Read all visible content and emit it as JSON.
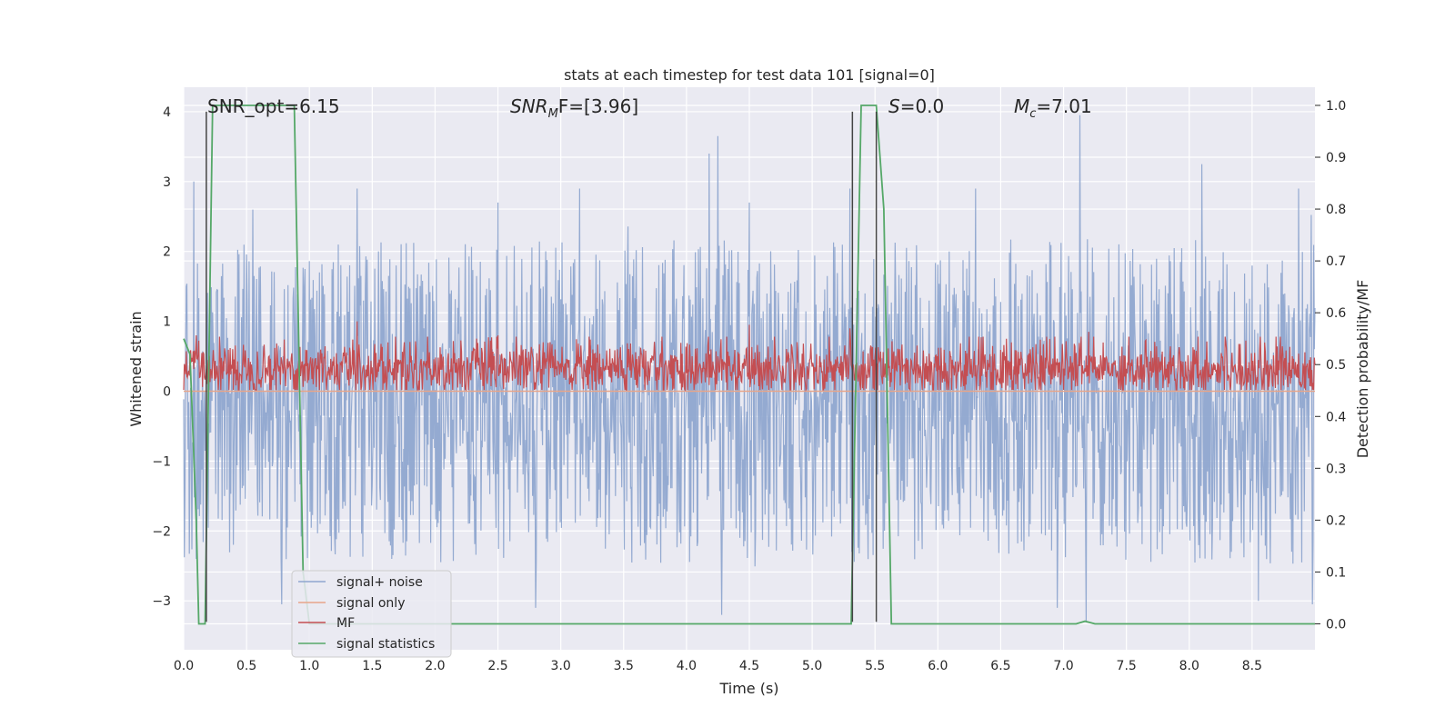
{
  "chart_data": {
    "type": "line",
    "title": "stats at each timestep for test data 101 [signal=0]",
    "xlabel": "Time (s)",
    "ylabel": "Whitened strain",
    "y2label": "Detection probability/MF",
    "xlim": [
      0.0,
      9.0
    ],
    "ylim": [
      -3.7,
      4.35
    ],
    "y2lim": [
      -0.05,
      1.035
    ],
    "grid": true,
    "legend_position": "lower-left",
    "xticks": [
      "0.0",
      "0.5",
      "1.0",
      "1.5",
      "2.0",
      "2.5",
      "3.0",
      "3.5",
      "4.0",
      "4.5",
      "5.0",
      "5.5",
      "6.0",
      "6.5",
      "7.0",
      "7.5",
      "8.0",
      "8.5"
    ],
    "yticks": [
      "4",
      "3",
      "2",
      "1",
      "0",
      "−1",
      "−2",
      "−3"
    ],
    "y2ticks": [
      "1.0",
      "0.9",
      "0.8",
      "0.7",
      "0.6",
      "0.5",
      "0.4",
      "0.3",
      "0.2",
      "0.1",
      "0.0"
    ],
    "annotations": {
      "snr_opt": "SNR_opt=6.15",
      "snr_mf_base": "SNR",
      "snr_mf_sub": "M",
      "snr_mf_rest": "F=[3.96]",
      "s_italic": "S",
      "s_rest": "=0.0",
      "mc_base": "M",
      "mc_sub": "c",
      "mc_rest": "=7.01"
    },
    "vertical_lines": [
      {
        "x": 0.18,
        "y_top": 4.0,
        "y_bottom": -3.3
      },
      {
        "x": 5.32,
        "y_top": 4.0,
        "y_bottom": -3.3
      },
      {
        "x": 5.51,
        "y_top": 4.0,
        "y_bottom": -3.3
      }
    ],
    "series": [
      {
        "name": "signal+ noise",
        "color": "#8fa6cf",
        "kind": "noise",
        "mean": -0.15,
        "sigma": 0.75,
        "peaks": [
          [
            0.08,
            3.0
          ],
          [
            0.55,
            2.6
          ],
          [
            1.38,
            2.9
          ],
          [
            2.5,
            2.7
          ],
          [
            3.15,
            2.9
          ],
          [
            4.18,
            3.4
          ],
          [
            4.25,
            3.65
          ],
          [
            4.5,
            2.7
          ],
          [
            5.3,
            2.9
          ],
          [
            6.3,
            2.9
          ],
          [
            7.13,
            3.95
          ],
          [
            8.1,
            3.25
          ],
          [
            8.87,
            2.9
          ]
        ],
        "troughs": [
          [
            0.1,
            -2.4
          ],
          [
            0.78,
            -3.05
          ],
          [
            2.8,
            -3.1
          ],
          [
            4.28,
            -3.2
          ],
          [
            6.95,
            -3.1
          ],
          [
            7.18,
            -3.3
          ],
          [
            8.55,
            -3.0
          ],
          [
            8.98,
            -3.05
          ]
        ]
      },
      {
        "name": "signal only",
        "color": "#e8a58a",
        "kind": "constant",
        "value": 0.0
      },
      {
        "name": "MF",
        "color": "#c44e52",
        "kind": "mf",
        "mean": 0.33,
        "amplitude": 0.2,
        "peaks": [
          [
            0.1,
            0.8
          ],
          [
            1.38,
            1.0
          ],
          [
            2.5,
            0.8
          ],
          [
            4.5,
            0.95
          ],
          [
            5.3,
            0.9
          ],
          [
            7.2,
            0.85
          ]
        ]
      },
      {
        "name": "signal statistics",
        "color": "#55a868",
        "kind": "step",
        "axis": "right",
        "x": [
          0.0,
          0.05,
          0.1,
          0.12,
          0.17,
          0.23,
          0.88,
          0.95,
          1.0,
          5.31,
          5.39,
          5.51,
          5.57,
          5.63,
          7.1,
          7.17,
          7.25,
          9.0
        ],
        "y": [
          0.55,
          0.52,
          0.2,
          0.0,
          0.0,
          1.0,
          1.0,
          0.1,
          0.0,
          0.0,
          1.0,
          1.0,
          0.8,
          0.0,
          0.0,
          0.005,
          0.0,
          0.0
        ]
      }
    ]
  }
}
